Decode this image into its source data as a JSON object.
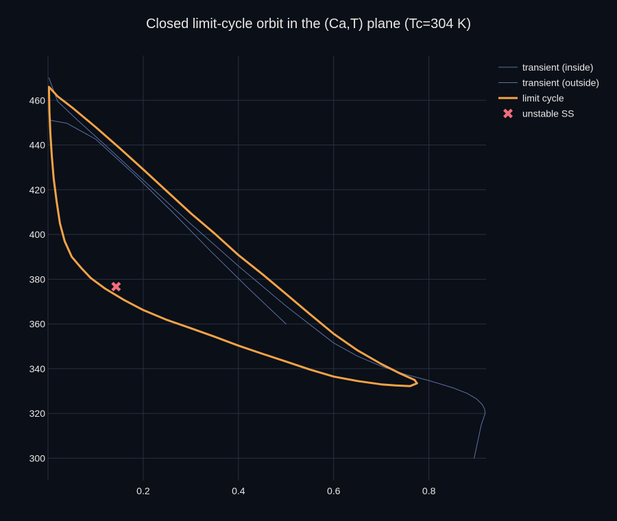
{
  "chart_data": {
    "type": "line",
    "title": "Closed limit-cycle orbit in the (Ca,T) plane (Tc=304 K)",
    "xlabel": "",
    "ylabel": "",
    "xlim": [
      0.0,
      0.92
    ],
    "ylim": [
      290,
      480
    ],
    "x_ticks": [
      0.2,
      0.4,
      0.6,
      0.8
    ],
    "x_tick_labels": [
      "0.2",
      "0.4",
      "0.6",
      "0.8"
    ],
    "y_ticks": [
      300,
      320,
      340,
      360,
      380,
      400,
      420,
      440,
      460
    ],
    "y_tick_labels": [
      "300",
      "320",
      "340",
      "360",
      "380",
      "400",
      "420",
      "440",
      "460"
    ],
    "grid": true,
    "legend_position": "top-right",
    "background_color": "#0b0f17",
    "grid_color": "#283142",
    "series": [
      {
        "name": "transient (inside)",
        "mode": "line",
        "color": "#5b72a6",
        "x": [
          0.5,
          0.42,
          0.34,
          0.26,
          0.18,
          0.1,
          0.04,
          0.006
        ],
        "y": [
          360,
          376.1,
          392.9,
          410.3,
          427.1,
          442.6,
          449.7,
          451.0
        ]
      },
      {
        "name": "transient (outside)",
        "mode": "line",
        "color": "#5b72a6",
        "x": [
          0.895,
          0.9,
          0.905,
          0.91,
          0.915,
          0.918,
          0.917,
          0.912,
          0.9,
          0.88,
          0.85,
          0.8,
          0.75,
          0.7,
          0.65,
          0.6,
          0.5,
          0.4,
          0.3,
          0.2,
          0.12,
          0.06,
          0.02,
          0.002
        ],
        "y": [
          300,
          305,
          310,
          315,
          318,
          320,
          322,
          324,
          326.5,
          329,
          331.5,
          334.7,
          337.5,
          341.1,
          345.6,
          351.5,
          368.0,
          385.9,
          404.7,
          424.3,
          440.0,
          451.5,
          459.6,
          470.0
        ]
      },
      {
        "name": "limit cycle",
        "mode": "line",
        "color": "#f4a347",
        "closed": true,
        "x": [
          0.002,
          0.003,
          0.005,
          0.008,
          0.012,
          0.018,
          0.025,
          0.035,
          0.05,
          0.07,
          0.09,
          0.12,
          0.16,
          0.2,
          0.25,
          0.3,
          0.35,
          0.4,
          0.45,
          0.5,
          0.55,
          0.6,
          0.65,
          0.7,
          0.73,
          0.76,
          0.775,
          0.77,
          0.74,
          0.7,
          0.65,
          0.6,
          0.55,
          0.5,
          0.45,
          0.4,
          0.35,
          0.3,
          0.25,
          0.2,
          0.15,
          0.1,
          0.05,
          0.02,
          0.002
        ],
        "y": [
          466,
          455,
          445,
          435,
          425,
          415,
          405,
          397,
          390,
          385,
          380.5,
          375.8,
          370.7,
          366.2,
          361.8,
          358.1,
          354.3,
          350.3,
          346.7,
          343.2,
          339.6,
          336.5,
          334.5,
          333.0,
          332.5,
          332.2,
          333.5,
          335,
          337.8,
          342.1,
          348.2,
          355.6,
          364.4,
          373.4,
          382.3,
          390.8,
          400.4,
          409.5,
          419.3,
          429.1,
          438.7,
          448.0,
          456.9,
          461.8,
          466
        ]
      },
      {
        "name": "unstable SS",
        "mode": "marker",
        "marker": "x",
        "color": "#ef6f7a",
        "x": [
          0.143
        ],
        "y": [
          376.7
        ]
      }
    ]
  }
}
